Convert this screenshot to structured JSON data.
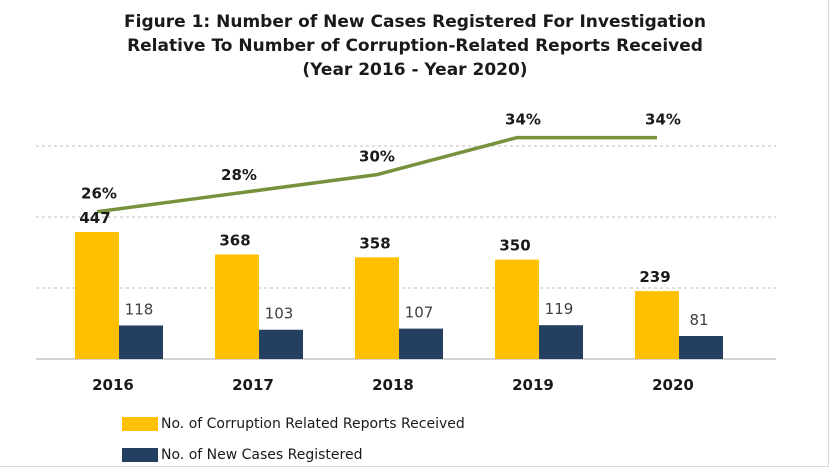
{
  "title_lines": [
    "Figure 1: Number of New Cases Registered For Investigation",
    "Relative To Number of Corruption-Related Reports Received",
    "(Year 2016 - Year 2020)"
  ],
  "colors": {
    "reports": "#FFC000",
    "cases": "#243F60",
    "ratio_line": "#76923C",
    "grid": "#bfbfbf"
  },
  "chart_data": {
    "type": "bar",
    "categories": [
      "2016",
      "2017",
      "2018",
      "2019",
      "2020"
    ],
    "series": [
      {
        "name": "No. of Corruption Related Reports Received",
        "values": [
          447,
          368,
          358,
          350,
          239
        ]
      },
      {
        "name": "No. of New Cases Registered",
        "values": [
          118,
          103,
          107,
          119,
          81
        ]
      }
    ],
    "line_series": {
      "values": [
        26,
        28,
        30,
        34,
        34
      ],
      "labels": [
        "26%",
        "28%",
        "30%",
        "34%",
        "34%"
      ],
      "unit": "%"
    },
    "title": "Figure 1: Number of New Cases Registered For Investigation Relative To Number of Corruption-Related Reports Received (Year 2016 - Year 2020)",
    "xlabel": "",
    "ylabel": "",
    "ylim": [
      0,
      1000
    ],
    "line_ylim": [
      10,
      40
    ],
    "grid": true,
    "legend_position": "bottom-left"
  }
}
